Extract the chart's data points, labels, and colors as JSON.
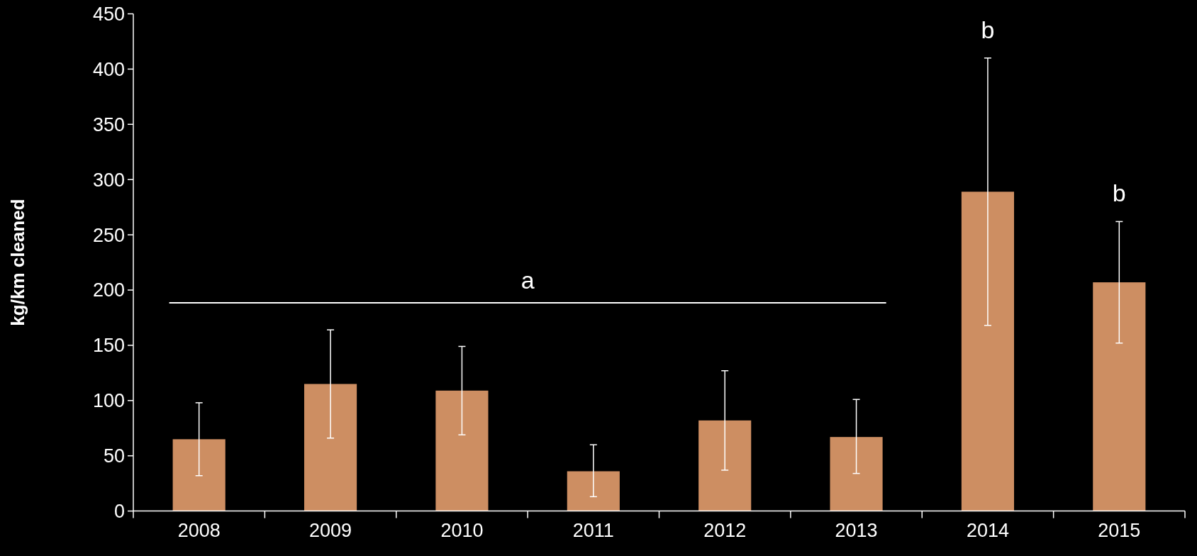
{
  "chart_data": {
    "type": "bar",
    "ylabel": "kg/km cleaned",
    "categories": [
      "2008",
      "2009",
      "2010",
      "2011",
      "2012",
      "2013",
      "2014",
      "2015"
    ],
    "values": [
      65,
      115,
      109,
      36,
      82,
      67,
      289,
      207
    ],
    "errors": [
      [
        32,
        98
      ],
      [
        66,
        164
      ],
      [
        69,
        149
      ],
      [
        13,
        60
      ],
      [
        37,
        127
      ],
      [
        34,
        101
      ],
      [
        168,
        410
      ],
      [
        152,
        262
      ]
    ],
    "color": "#cd8e62",
    "ylim": [
      0,
      450
    ],
    "yticks": [
      0,
      50,
      100,
      150,
      200,
      250,
      300,
      350,
      400,
      450
    ],
    "grid": false,
    "annotations": [
      "a",
      {
        "text": "b",
        "x": "2014",
        "y": 410
      },
      {
        "text": "b",
        "x": "2015",
        "y": 262
      }
    ]
  }
}
